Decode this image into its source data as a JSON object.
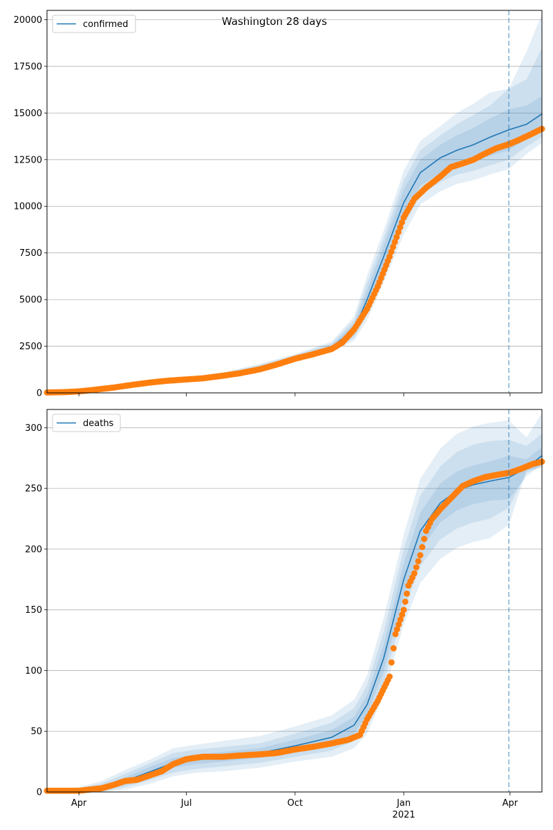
{
  "figure_title": "Washington 28 days",
  "colors": {
    "model": "#1f77b4",
    "observed": "#ff7f0e",
    "band": "#1f77b4",
    "grid": "#b0b0b0",
    "forecast_line": "#1f77b4"
  },
  "x_axis": {
    "tick_labels": [
      "Apr",
      "Jul",
      "Oct",
      "Jan",
      "Apr"
    ],
    "tick_dates": [
      "2020-04-01",
      "2020-07-01",
      "2020-10-01",
      "2021-01-01",
      "2021-04-01"
    ],
    "year_label": "2021",
    "range": [
      "2020-03-05",
      "2021-04-28"
    ],
    "forecast_start": "2021-03-31"
  },
  "chart_data": [
    {
      "type": "line",
      "legend": "confirmed",
      "legend_position": "top-left",
      "grid": "horizontal",
      "ylim": [
        0,
        20500
      ],
      "yticks": [
        0,
        2500,
        5000,
        7500,
        10000,
        12500,
        15000,
        17500,
        20000
      ],
      "ytick_labels": [
        "0",
        "2500",
        "5000",
        "7500",
        "10000",
        "12500",
        "15000",
        "17500",
        "20000"
      ],
      "model_series": {
        "name": "confirmed",
        "x": [
          "2020-03-05",
          "2020-04-01",
          "2020-05-01",
          "2020-06-01",
          "2020-07-01",
          "2020-08-01",
          "2020-09-01",
          "2020-10-01",
          "2020-11-01",
          "2020-11-20",
          "2020-12-01",
          "2020-12-15",
          "2021-01-01",
          "2021-01-15",
          "2021-02-01",
          "2021-02-15",
          "2021-03-01",
          "2021-03-15",
          "2021-03-31",
          "2021-04-15",
          "2021-04-28"
        ],
        "y": [
          50,
          100,
          300,
          560,
          720,
          930,
          1350,
          1870,
          2450,
          3400,
          5000,
          7300,
          10200,
          11800,
          12600,
          13000,
          13300,
          13700,
          14100,
          14400,
          14950
        ],
        "band_1": [
          [
            50,
            50
          ],
          [
            90,
            110
          ],
          [
            270,
            330
          ],
          [
            520,
            600
          ],
          [
            670,
            770
          ],
          [
            870,
            990
          ],
          [
            1280,
            1420
          ],
          [
            1790,
            1950
          ],
          [
            2350,
            2550
          ],
          [
            3100,
            3700
          ],
          [
            4500,
            5500
          ],
          [
            6700,
            7900
          ],
          [
            9500,
            10900
          ],
          [
            11100,
            12500
          ],
          [
            11800,
            13300
          ],
          [
            12200,
            13800
          ],
          [
            12400,
            14200
          ],
          [
            12700,
            14700
          ],
          [
            13000,
            15200
          ],
          [
            13600,
            15400
          ],
          [
            14000,
            15900
          ]
        ],
        "band_2": [
          [
            50,
            50
          ],
          [
            80,
            120
          ],
          [
            250,
            350
          ],
          [
            490,
            640
          ],
          [
            630,
            810
          ],
          [
            820,
            1050
          ],
          [
            1220,
            1490
          ],
          [
            1730,
            2020
          ],
          [
            2280,
            2650
          ],
          [
            2950,
            3900
          ],
          [
            4200,
            5900
          ],
          [
            6300,
            8300
          ],
          [
            9000,
            11400
          ],
          [
            10600,
            13000
          ],
          [
            11300,
            13800
          ],
          [
            11700,
            14400
          ],
          [
            11900,
            14900
          ],
          [
            12200,
            15400
          ],
          [
            12500,
            16300
          ],
          [
            13200,
            16800
          ],
          [
            13700,
            18500
          ]
        ],
        "band_3": [
          [
            50,
            50
          ],
          [
            70,
            130
          ],
          [
            230,
            370
          ],
          [
            460,
            680
          ],
          [
            600,
            850
          ],
          [
            780,
            1100
          ],
          [
            1170,
            1550
          ],
          [
            1680,
            2080
          ],
          [
            2200,
            2750
          ],
          [
            2800,
            4100
          ],
          [
            3900,
            6300
          ],
          [
            5900,
            8700
          ],
          [
            8500,
            11900
          ],
          [
            10100,
            13500
          ],
          [
            10800,
            14300
          ],
          [
            11200,
            15000
          ],
          [
            11400,
            15500
          ],
          [
            11700,
            16100
          ],
          [
            12000,
            16300
          ],
          [
            12800,
            18300
          ],
          [
            13400,
            20300
          ]
        ]
      },
      "observed_series": {
        "name": "observed",
        "x": [
          "2020-03-05",
          "2020-03-20",
          "2020-04-01",
          "2020-04-15",
          "2020-05-01",
          "2020-05-15",
          "2020-06-01",
          "2020-06-15",
          "2020-07-01",
          "2020-07-15",
          "2020-08-01",
          "2020-08-15",
          "2020-09-01",
          "2020-09-15",
          "2020-10-01",
          "2020-10-15",
          "2020-11-01",
          "2020-11-10",
          "2020-11-20",
          "2020-12-01",
          "2020-12-10",
          "2020-12-20",
          "2021-01-01",
          "2021-01-10",
          "2021-01-20",
          "2021-02-01",
          "2021-02-10",
          "2021-02-20",
          "2021-03-01",
          "2021-03-10",
          "2021-03-20",
          "2021-04-01",
          "2021-04-10",
          "2021-04-20",
          "2021-04-28"
        ],
        "y": [
          20,
          40,
          80,
          170,
          290,
          420,
          560,
          650,
          720,
          780,
          920,
          1050,
          1260,
          1510,
          1830,
          2050,
          2350,
          2700,
          3400,
          4500,
          5700,
          7300,
          9400,
          10400,
          11000,
          11600,
          12100,
          12300,
          12500,
          12800,
          13100,
          13350,
          13600,
          13900,
          14150
        ]
      }
    },
    {
      "type": "line",
      "legend": "deaths",
      "legend_position": "top-left",
      "grid": "horizontal",
      "ylim": [
        0,
        315
      ],
      "yticks": [
        0,
        50,
        100,
        150,
        200,
        250,
        300
      ],
      "ytick_labels": [
        "0",
        "50",
        "100",
        "150",
        "200",
        "250",
        "300"
      ],
      "model_series": {
        "name": "deaths",
        "x": [
          "2020-03-05",
          "2020-04-01",
          "2020-04-20",
          "2020-05-10",
          "2020-06-01",
          "2020-06-20",
          "2020-07-10",
          "2020-08-01",
          "2020-09-01",
          "2020-10-01",
          "2020-11-01",
          "2020-11-20",
          "2020-12-01",
          "2020-12-15",
          "2021-01-01",
          "2021-01-15",
          "2021-02-01",
          "2021-02-15",
          "2021-03-01",
          "2021-03-15",
          "2021-03-31",
          "2021-04-15",
          "2021-04-28"
        ],
        "y": [
          1,
          1,
          3,
          9,
          17,
          24,
          27,
          29,
          32,
          38,
          45,
          55,
          72,
          110,
          175,
          215,
          238,
          248,
          253,
          256,
          259,
          267,
          277
        ],
        "band_1": [
          [
            1,
            1
          ],
          [
            0,
            2
          ],
          [
            1,
            5
          ],
          [
            6,
            12
          ],
          [
            13,
            21
          ],
          [
            20,
            28
          ],
          [
            23,
            31
          ],
          [
            25,
            33
          ],
          [
            28,
            36
          ],
          [
            33,
            43
          ],
          [
            39,
            51
          ],
          [
            48,
            62
          ],
          [
            64,
            80
          ],
          [
            99,
            121
          ],
          [
            162,
            188
          ],
          [
            200,
            230
          ],
          [
            222,
            254
          ],
          [
            232,
            264
          ],
          [
            237,
            269
          ],
          [
            240,
            272
          ],
          [
            241,
            277
          ],
          [
            260,
            274
          ],
          [
            270,
            284
          ]
        ],
        "band_2": [
          [
            1,
            1
          ],
          [
            0,
            3
          ],
          [
            0,
            7
          ],
          [
            4,
            15
          ],
          [
            10,
            24
          ],
          [
            16,
            32
          ],
          [
            19,
            35
          ],
          [
            21,
            37
          ],
          [
            24,
            40
          ],
          [
            29,
            48
          ],
          [
            34,
            57
          ],
          [
            42,
            69
          ],
          [
            56,
            88
          ],
          [
            90,
            132
          ],
          [
            150,
            200
          ],
          [
            186,
            244
          ],
          [
            208,
            268
          ],
          [
            217,
            280
          ],
          [
            222,
            286
          ],
          [
            225,
            289
          ],
          [
            234,
            290
          ],
          [
            263,
            285
          ],
          [
            268,
            295
          ]
        ],
        "band_3": [
          [
            1,
            1
          ],
          [
            0,
            4
          ],
          [
            0,
            9
          ],
          [
            2,
            18
          ],
          [
            7,
            27
          ],
          [
            13,
            36
          ],
          [
            16,
            39
          ],
          [
            17,
            42
          ],
          [
            20,
            46
          ],
          [
            25,
            54
          ],
          [
            29,
            63
          ],
          [
            36,
            76
          ],
          [
            48,
            96
          ],
          [
            80,
            143
          ],
          [
            138,
            212
          ],
          [
            172,
            258
          ],
          [
            192,
            283
          ],
          [
            201,
            295
          ],
          [
            206,
            301
          ],
          [
            209,
            304
          ],
          [
            220,
            306
          ],
          [
            265,
            292
          ],
          [
            267,
            312
          ]
        ]
      },
      "observed_series": {
        "name": "observed",
        "x": [
          "2020-03-05",
          "2020-04-01",
          "2020-04-10",
          "2020-04-20",
          "2020-05-01",
          "2020-05-10",
          "2020-05-20",
          "2020-06-01",
          "2020-06-10",
          "2020-06-20",
          "2020-07-01",
          "2020-07-15",
          "2020-08-01",
          "2020-08-15",
          "2020-09-01",
          "2020-09-15",
          "2020-10-01",
          "2020-10-15",
          "2020-11-01",
          "2020-11-15",
          "2020-11-25",
          "2020-12-01",
          "2020-12-10",
          "2020-12-20",
          "2020-12-25",
          "2021-01-01",
          "2021-01-05",
          "2021-01-10",
          "2021-01-15",
          "2021-01-20",
          "2021-01-25",
          "2021-02-01",
          "2021-02-10",
          "2021-02-20",
          "2021-03-01",
          "2021-03-10",
          "2021-03-20",
          "2021-04-01",
          "2021-04-10",
          "2021-04-20",
          "2021-04-28"
        ],
        "y": [
          1,
          1,
          2,
          3,
          6,
          9,
          10,
          14,
          17,
          23,
          27,
          29,
          29,
          30,
          31,
          32,
          35,
          37,
          40,
          43,
          47,
          60,
          75,
          95,
          130,
          150,
          170,
          180,
          195,
          215,
          225,
          233,
          242,
          252,
          256,
          259,
          261,
          263,
          266,
          270,
          272
        ]
      }
    }
  ]
}
